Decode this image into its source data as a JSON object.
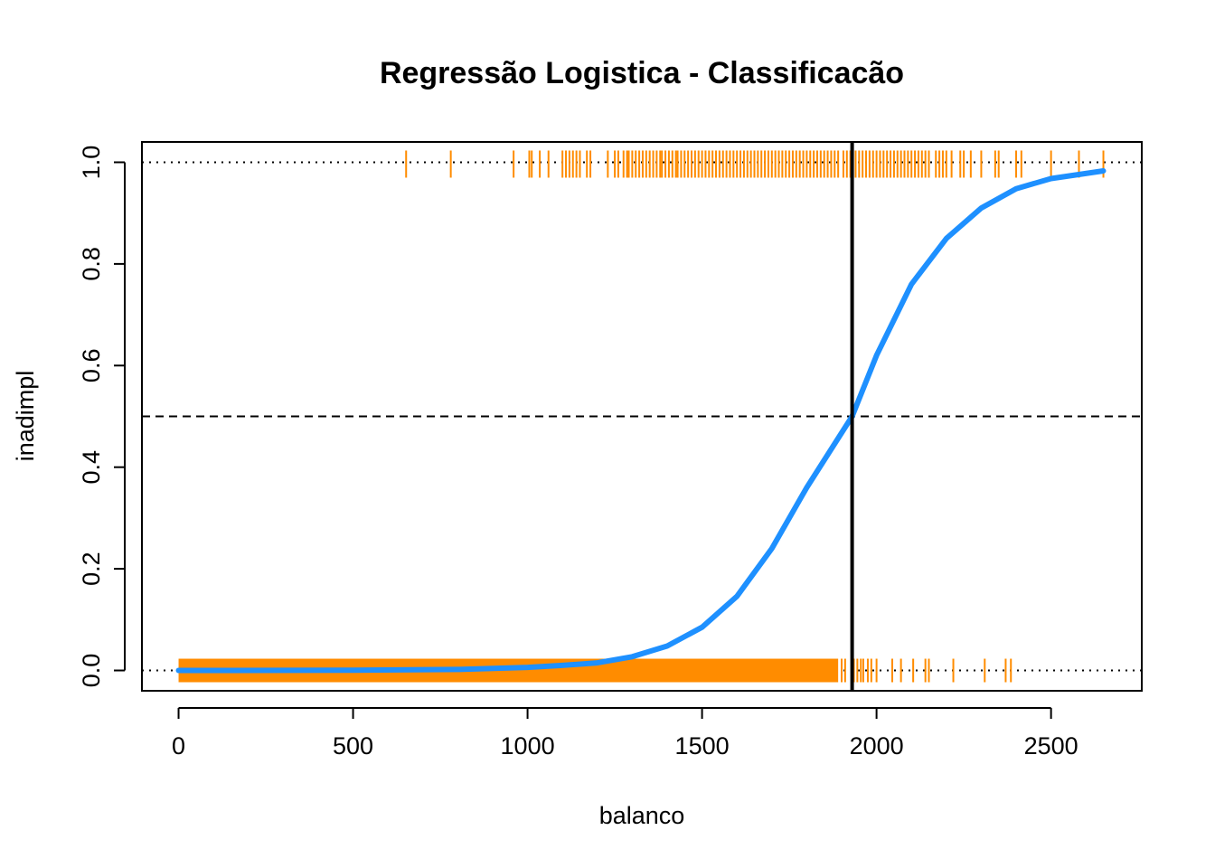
{
  "chart_data": {
    "type": "scatter",
    "title": "Regressão Logistica - Classificacão",
    "xlabel": "balanco",
    "ylabel": "inadimpl",
    "xlim": [
      -105,
      2760
    ],
    "ylim": [
      -0.04,
      1.04
    ],
    "x_ticks": [
      0,
      500,
      1000,
      1500,
      2000,
      2500
    ],
    "x_tick_labels": [
      "0",
      "500",
      "1000",
      "1500",
      "2000",
      "2500"
    ],
    "y_ticks": [
      0.0,
      0.2,
      0.4,
      0.6,
      0.8,
      1.0
    ],
    "y_tick_labels": [
      "0.0",
      "0.2",
      "0.4",
      "0.6",
      "0.8",
      "1.0"
    ],
    "grid": false,
    "reference_lines": {
      "horizontal_dotted": [
        0,
        1
      ],
      "horizontal_dashed": 0.5,
      "vertical_solid": 1930
    },
    "rug_color": "#FF8C00",
    "curve_color": "#1E90FF",
    "rug_default_1": [
      652,
      780,
      960,
      1005,
      1012,
      1035,
      1060,
      1100,
      1110,
      1120,
      1130,
      1140,
      1150,
      1170,
      1180,
      1230,
      1250,
      1260,
      1275,
      1285,
      1290,
      1300,
      1310,
      1320,
      1330,
      1340,
      1350,
      1360,
      1370,
      1380,
      1385,
      1395,
      1405,
      1415,
      1425,
      1430,
      1440,
      1450,
      1460,
      1470,
      1480,
      1490,
      1500,
      1510,
      1520,
      1530,
      1540,
      1550,
      1560,
      1570,
      1580,
      1590,
      1600,
      1610,
      1620,
      1630,
      1640,
      1650,
      1660,
      1670,
      1680,
      1690,
      1700,
      1710,
      1720,
      1730,
      1740,
      1750,
      1760,
      1770,
      1780,
      1790,
      1800,
      1810,
      1820,
      1830,
      1840,
      1850,
      1860,
      1870,
      1880,
      1890,
      1905,
      1915,
      1925,
      1940,
      1950,
      1960,
      1970,
      1980,
      1990,
      2000,
      2010,
      2020,
      2030,
      2040,
      2050,
      2060,
      2070,
      2080,
      2090,
      2100,
      2110,
      2120,
      2130,
      2140,
      2150,
      2170,
      2180,
      2190,
      2200,
      2215,
      2240,
      2250,
      2270,
      2300,
      2340,
      2350,
      2400,
      2415,
      2500,
      2580,
      2650
    ],
    "rug_default_0_dense_range": [
      0,
      1890
    ],
    "rug_default_0_sparse": [
      1900,
      1910,
      1935,
      1945,
      1955,
      1962,
      1975,
      1985,
      2000,
      2045,
      2070,
      2105,
      2140,
      2150,
      2220,
      2310,
      2370,
      2385
    ],
    "curve_points": [
      {
        "x": 0,
        "y": 0.0
      },
      {
        "x": 500,
        "y": 0.0003
      },
      {
        "x": 800,
        "y": 0.002
      },
      {
        "x": 1000,
        "y": 0.006
      },
      {
        "x": 1100,
        "y": 0.01
      },
      {
        "x": 1200,
        "y": 0.015
      },
      {
        "x": 1300,
        "y": 0.027
      },
      {
        "x": 1400,
        "y": 0.048
      },
      {
        "x": 1500,
        "y": 0.085
      },
      {
        "x": 1600,
        "y": 0.146
      },
      {
        "x": 1700,
        "y": 0.24
      },
      {
        "x": 1800,
        "y": 0.36
      },
      {
        "x": 1930,
        "y": 0.5
      },
      {
        "x": 2000,
        "y": 0.62
      },
      {
        "x": 2100,
        "y": 0.76
      },
      {
        "x": 2200,
        "y": 0.85
      },
      {
        "x": 2300,
        "y": 0.91
      },
      {
        "x": 2400,
        "y": 0.948
      },
      {
        "x": 2500,
        "y": 0.968
      },
      {
        "x": 2650,
        "y": 0.983
      }
    ]
  }
}
